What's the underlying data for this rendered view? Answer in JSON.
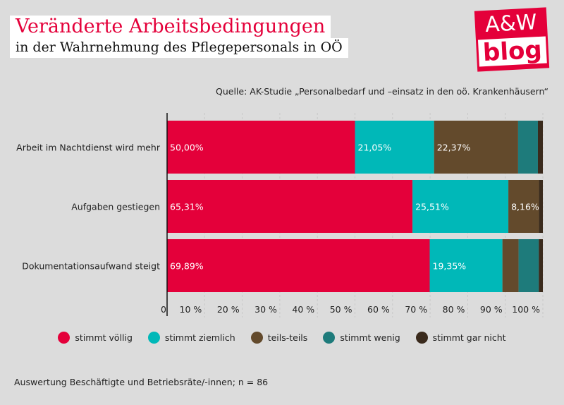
{
  "title": "Veränderte Arbeitsbedingungen",
  "subtitle": "in der Wahrnehmung des Pflegepersonals in OÖ",
  "logo": {
    "top": "A&W",
    "bottom": "blog"
  },
  "source": "Quelle: AK-Studie „Personalbedarf und –einsatz in den oö. Krankenhäusern“",
  "footnote": "Auswertung Beschäftigte und Betriebsräte/-innen; n = 86",
  "colors": {
    "stimmt_voellig": "#e4003a",
    "stimmt_ziemlich": "#00b8b8",
    "teils_teils": "#634a2c",
    "stimmt_wenig": "#1e7b7b",
    "stimmt_gar_nicht": "#3a2a1c"
  },
  "chart_data": {
    "type": "bar",
    "orientation": "horizontal",
    "stacked": true,
    "categories": [
      "Arbeit im Nachtdienst wird mehr",
      "Aufgaben gestiegen",
      "Dokumentationsaufwand steigt"
    ],
    "series": [
      {
        "name": "stimmt völlig",
        "color": "#e4003a",
        "values": [
          50.0,
          65.31,
          69.89
        ],
        "labels": [
          "50,00%",
          "65,31%",
          "69,89%"
        ]
      },
      {
        "name": "stimmt ziemlich",
        "color": "#00b8b8",
        "values": [
          21.05,
          25.51,
          19.35
        ],
        "labels": [
          "21,05%",
          "25,51%",
          "19,35%"
        ]
      },
      {
        "name": "teils-teils",
        "color": "#634a2c",
        "values": [
          22.37,
          8.16,
          4.3
        ],
        "labels": [
          "22,37%",
          "8,16%",
          ""
        ]
      },
      {
        "name": "stimmt wenig",
        "color": "#1e7b7b",
        "values": [
          5.26,
          0,
          5.38
        ],
        "labels": [
          "",
          "",
          ""
        ]
      },
      {
        "name": "stimmt gar nicht",
        "color": "#3a2a1c",
        "values": [
          1.32,
          1.02,
          1.08
        ],
        "labels": [
          "",
          "",
          ""
        ]
      }
    ],
    "xlim": [
      0,
      100
    ],
    "xticks": [
      0,
      10,
      20,
      30,
      40,
      50,
      60,
      70,
      80,
      90,
      100
    ],
    "xtick_labels": [
      "0",
      "10 %",
      "20 %",
      "30 %",
      "40 %",
      "50 %",
      "60 %",
      "70 %",
      "80 %",
      "90 %",
      "100 %"
    ],
    "grid": true,
    "legend_position": "bottom"
  }
}
